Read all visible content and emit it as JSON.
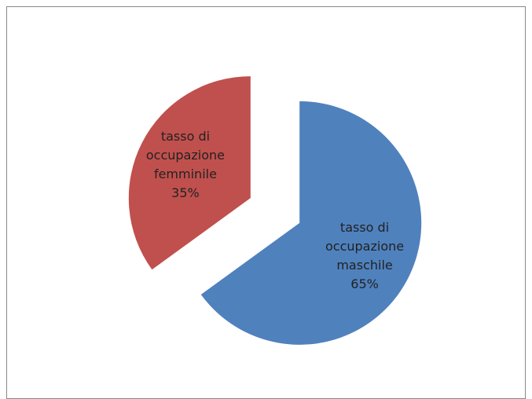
{
  "chart_data": {
    "type": "pie",
    "categories": [
      "tasso di occupazione maschile",
      "tasso di occupazione femminile"
    ],
    "values": [
      65,
      35
    ],
    "value_labels": [
      "65%",
      "35%"
    ],
    "colors": [
      "#4f81bd",
      "#c0504d"
    ],
    "exploded": true
  }
}
